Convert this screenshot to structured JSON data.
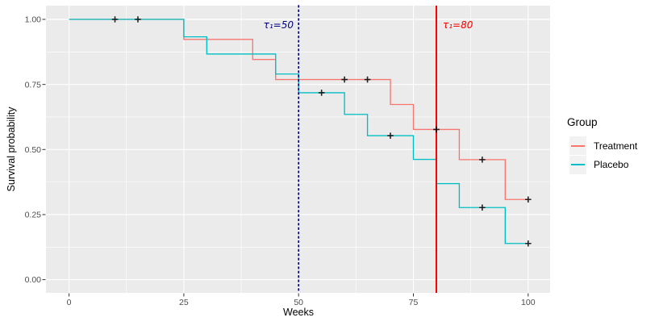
{
  "chart_data": {
    "type": "line",
    "subtype": "kaplan-meier-step",
    "title": "",
    "xlabel": "Weeks",
    "ylabel": "Survival probability",
    "x_range": [
      0,
      100
    ],
    "y_range": [
      0,
      1
    ],
    "x_ticks": [
      0,
      25,
      50,
      75,
      100
    ],
    "x_tick_labels": [
      "0",
      "25",
      "50",
      "75",
      "100"
    ],
    "x_minor_ticks": [
      12.5,
      37.5,
      62.5,
      87.5
    ],
    "y_ticks": [
      0,
      0.25,
      0.5,
      0.75,
      1
    ],
    "y_tick_labels": [
      "0.00",
      "0.25",
      "0.50",
      "0.75",
      "1.00"
    ],
    "y_minor_ticks": [
      0.125,
      0.375,
      0.625,
      0.875
    ],
    "grid": true,
    "legend_position": "right",
    "legend_title": "Group",
    "panel_bg": "#EBEBEB",
    "grid_color": "#FFFFFF",
    "tick_label_color": "#4D4D4D",
    "censor_color": "#000000",
    "series": [
      {
        "name": "Treatment",
        "color": "#F8766D",
        "steps": [
          [
            0,
            1.0
          ],
          [
            25,
            0.923
          ],
          [
            40,
            0.846
          ],
          [
            45,
            0.769
          ],
          [
            70,
            0.673
          ],
          [
            75,
            0.577
          ],
          [
            85,
            0.461
          ],
          [
            95,
            0.308
          ],
          [
            100,
            0.308
          ]
        ],
        "censors": [
          [
            60,
            0.769
          ],
          [
            65,
            0.769
          ],
          [
            80,
            0.577
          ],
          [
            90,
            0.461
          ],
          [
            100,
            0.308
          ]
        ]
      },
      {
        "name": "Placebo",
        "color": "#00BFC4",
        "steps": [
          [
            0,
            1.0
          ],
          [
            25,
            0.933
          ],
          [
            30,
            0.867
          ],
          [
            45,
            0.79
          ],
          [
            50,
            0.718
          ],
          [
            60,
            0.635
          ],
          [
            65,
            0.553
          ],
          [
            75,
            0.462
          ],
          [
            80,
            0.369
          ],
          [
            85,
            0.277
          ],
          [
            95,
            0.139
          ],
          [
            100,
            0.139
          ]
        ],
        "censors": [
          [
            10,
            1.0
          ],
          [
            15,
            1.0
          ],
          [
            55,
            0.718
          ],
          [
            70,
            0.553
          ],
          [
            90,
            0.277
          ],
          [
            100,
            0.139
          ]
        ]
      }
    ],
    "vlines": [
      {
        "x": 50,
        "style": "dotted",
        "color": "#000080",
        "label": "τ₁=50"
      },
      {
        "x": 80,
        "style": "solid",
        "color": "#F40000",
        "label": "τ₁=80"
      }
    ]
  }
}
